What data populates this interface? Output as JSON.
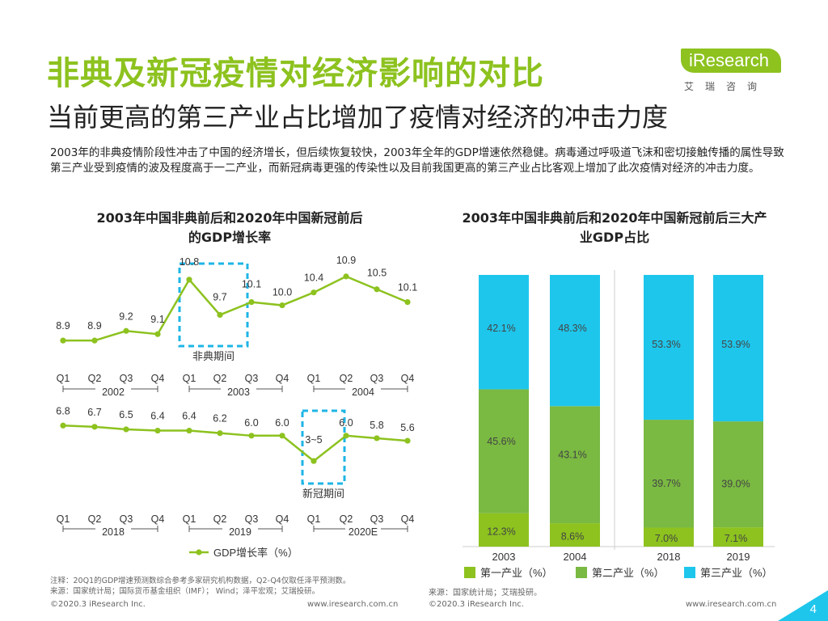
{
  "header": {
    "title": "非典及新冠疫情对经济影响的对比",
    "subtitle": "当前更高的第三产业占比增加了疫情对经济的冲击力度",
    "logo_text": "iResearch",
    "logo_cn": "艾瑞咨询"
  },
  "intro": "2003年的非典疫情阶段性冲击了中国的经济增长，但后续恢复较快，2003年全年的GDP增速依然稳健。病毒通过呼吸道飞沫和密切接触传播的属性导致第三产业受到疫情的波及程度高于一二产业，而新冠病毒更强的传染性以及目前我国更高的第三产业占比客观上增加了此次疫情对经济的冲击力度。",
  "colors": {
    "green_line": "#8dc21f",
    "bar_primary": "#8dc21f",
    "bar_secondary": "#7ab942",
    "bar_tertiary": "#1ec6ec",
    "highlight": "#1eb5e6"
  },
  "chart_data": [
    {
      "type": "line",
      "title": "2003年中国非典前后和2020年中国新冠前后的GDP增长率",
      "title_lines": [
        "2003年中国非典前后和2020年中国新冠前后",
        "的GDP增长率"
      ],
      "legend": "GDP增长率（%）",
      "panels": [
        {
          "x": [
            "Q1",
            "Q2",
            "Q3",
            "Q4",
            "Q1",
            "Q2",
            "Q3",
            "Q4",
            "Q1",
            "Q2",
            "Q3",
            "Q4"
          ],
          "years": [
            "2002",
            "2003",
            "2004"
          ],
          "values": [
            8.9,
            8.9,
            9.2,
            9.1,
            10.8,
            9.7,
            10.1,
            10.0,
            10.4,
            10.9,
            10.5,
            10.1
          ],
          "labels": [
            "8.9",
            "8.9",
            "9.2",
            "9.1",
            "10.8",
            "9.7",
            "10.1",
            "10.0",
            "10.4",
            "10.9",
            "10.5",
            "10.1"
          ],
          "highlight": {
            "from_index": 4,
            "to_index": 5,
            "label": "非典期间"
          },
          "ylim": [
            8.5,
            11.2
          ]
        },
        {
          "x": [
            "Q1",
            "Q2",
            "Q3",
            "Q4",
            "Q1",
            "Q2",
            "Q3",
            "Q4",
            "Q1",
            "Q2",
            "Q3",
            "Q4"
          ],
          "years": [
            "2018",
            "2019",
            "2020E"
          ],
          "values": [
            6.8,
            6.7,
            6.5,
            6.4,
            6.4,
            6.2,
            6.0,
            6.0,
            4.0,
            6.0,
            5.8,
            5.6
          ],
          "labels": [
            "6.8",
            "6.7",
            "6.5",
            "6.4",
            "6.4",
            "6.2",
            "6.0",
            "6.0",
            "3~5",
            "6.0",
            "5.8",
            "5.6"
          ],
          "highlight": {
            "from_index": 8,
            "to_index": 8,
            "label": "新冠期间"
          },
          "ylim": [
            3.5,
            7.2
          ]
        }
      ]
    },
    {
      "type": "bar",
      "stacked": true,
      "title": "2003年中国非典前后和2020年中国新冠前后三大产业GDP占比",
      "title_lines": [
        "2003年中国非典前后和2020年中国新冠前后三大产",
        "业GDP占比"
      ],
      "categories": [
        "2003",
        "2004",
        "2018",
        "2019"
      ],
      "series": [
        {
          "name": "第一产业（%）",
          "values": [
            12.3,
            8.6,
            7.0,
            7.1
          ],
          "labels": [
            "12.3%",
            "8.6%",
            "7.0%",
            "7.1%"
          ]
        },
        {
          "name": "第二产业（%）",
          "values": [
            45.6,
            43.1,
            39.7,
            39.0
          ],
          "labels": [
            "45.6%",
            "43.1%",
            "39.7%",
            "39.0%"
          ]
        },
        {
          "name": "第三产业（%）",
          "values": [
            42.1,
            48.3,
            53.3,
            53.9
          ],
          "labels": [
            "42.1%",
            "48.3%",
            "53.3%",
            "53.9%"
          ]
        }
      ],
      "ylim": [
        0,
        100
      ]
    }
  ],
  "notes": {
    "note1": "注释：20Q1的GDP增速预测数综合参考多家研究机构数据，Q2-Q4仅取任泽平预测数。",
    "source1": "来源：国家统计局；国际货币基金组织（IMF）； Wind；泽平宏观；艾瑞投研。",
    "source2": "来源：国家统计局；艾瑞投研。"
  },
  "footer": {
    "copyright_left": "©2020.3 iResearch Inc.",
    "url_left": "www.iresearch.com.cn",
    "copyright_right": "©2020.3 iResearch Inc.",
    "url_right": "www.iresearch.com.cn",
    "page_number": "4"
  }
}
